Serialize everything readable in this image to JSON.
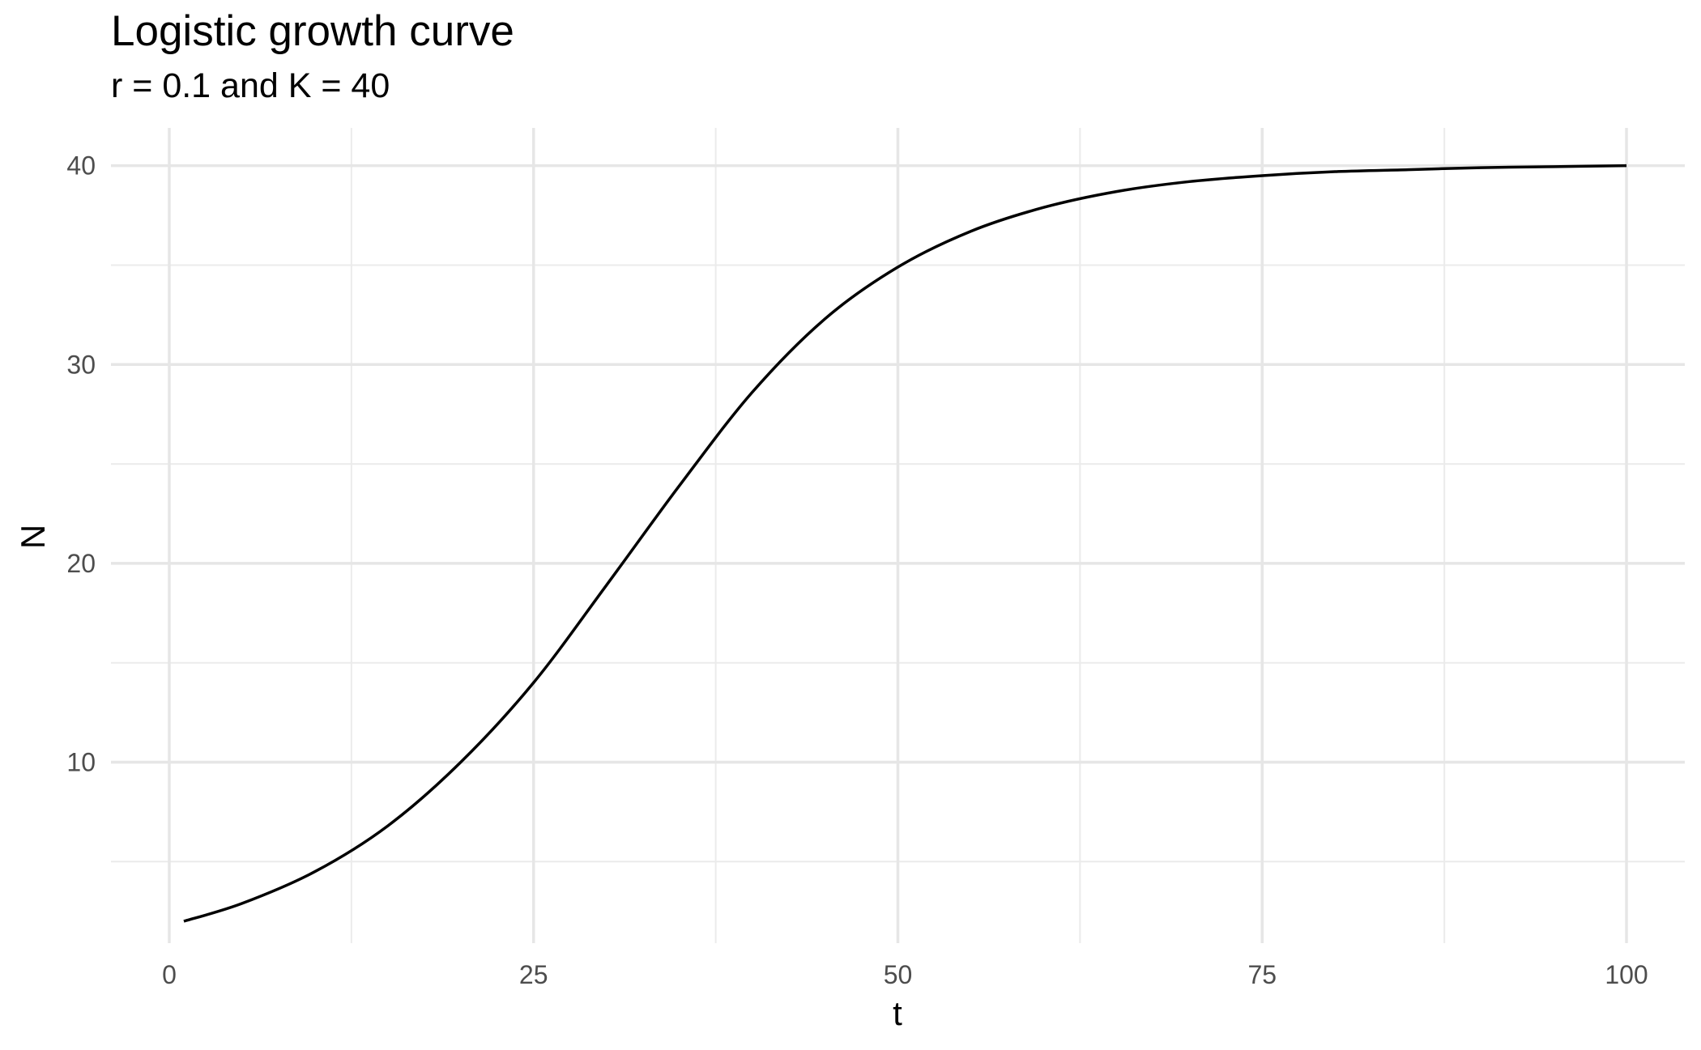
{
  "chart_data": {
    "type": "line",
    "title": "Logistic growth curve",
    "subtitle": "r = 0.1 and K = 40",
    "xlabel": "t",
    "ylabel": "N",
    "xlim": [
      -4,
      104
    ],
    "ylim": [
      0.9,
      41.9
    ],
    "x_ticks": [
      0,
      25,
      50,
      75,
      100
    ],
    "x_tick_labels": [
      "0",
      "25",
      "50",
      "75",
      "100"
    ],
    "y_ticks": [
      10,
      20,
      30,
      40
    ],
    "y_tick_labels": [
      "10",
      "20",
      "30",
      "40"
    ],
    "x_minor_ticks": [
      12.5,
      37.5,
      62.5,
      87.5
    ],
    "y_minor_ticks": [
      5,
      15,
      25,
      35
    ],
    "grid": true,
    "legend": "none",
    "series": [
      {
        "color": "#000000",
        "x": [
          1,
          5,
          10,
          15,
          20,
          25,
          30,
          35,
          40,
          45,
          50,
          55,
          60,
          65,
          70,
          75,
          80,
          85,
          90,
          95,
          100
        ],
        "y": [
          2.0,
          2.9,
          4.5,
          6.8,
          10.0,
          14.0,
          18.9,
          23.9,
          28.6,
          32.3,
          34.9,
          36.7,
          37.9,
          38.7,
          39.2,
          39.5,
          39.7,
          39.8,
          39.9,
          39.95,
          40.0
        ]
      }
    ]
  }
}
